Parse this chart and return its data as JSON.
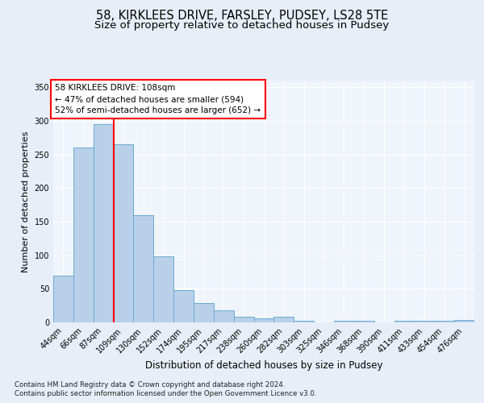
{
  "title1": "58, KIRKLEES DRIVE, FARSLEY, PUDSEY, LS28 5TE",
  "title2": "Size of property relative to detached houses in Pudsey",
  "xlabel": "Distribution of detached houses by size in Pudsey",
  "ylabel": "Number of detached properties",
  "categories": [
    "44sqm",
    "66sqm",
    "87sqm",
    "109sqm",
    "130sqm",
    "152sqm",
    "174sqm",
    "195sqm",
    "217sqm",
    "238sqm",
    "260sqm",
    "282sqm",
    "303sqm",
    "325sqm",
    "346sqm",
    "368sqm",
    "390sqm",
    "411sqm",
    "433sqm",
    "454sqm",
    "476sqm"
  ],
  "values": [
    70,
    260,
    295,
    265,
    160,
    98,
    48,
    29,
    18,
    9,
    6,
    8,
    3,
    0,
    3,
    3,
    0,
    3,
    3,
    3,
    4
  ],
  "bar_color": "#b8d0e8",
  "bar_edge_color": "#6aaad4",
  "vline_index": 3,
  "annotation_line1": "58 KIRKLEES DRIVE: 108sqm",
  "annotation_line2": "← 47% of detached houses are smaller (594)",
  "annotation_line3": "52% of semi-detached houses are larger (652) →",
  "annotation_box_color": "white",
  "annotation_box_edge_color": "red",
  "vline_color": "red",
  "ylim": [
    0,
    360
  ],
  "yticks": [
    0,
    50,
    100,
    150,
    200,
    250,
    300,
    350
  ],
  "bg_color": "#e8eef8",
  "plot_bg_color": "#f0f4fb",
  "grid_color": "#ffffff",
  "footer_line1": "Contains HM Land Registry data © Crown copyright and database right 2024.",
  "footer_line2": "Contains public sector information licensed under the Open Government Licence v3.0.",
  "title1_fontsize": 10.5,
  "title2_fontsize": 9.5,
  "xlabel_fontsize": 8.5,
  "ylabel_fontsize": 8,
  "tick_fontsize": 7,
  "annotation_fontsize": 7.5,
  "footer_fontsize": 6.2
}
